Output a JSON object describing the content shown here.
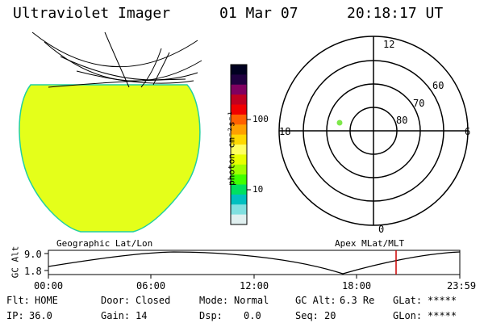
{
  "header": {
    "title": "Ultraviolet Imager",
    "date": "01 Mar 07",
    "time": "20:18:17 UT"
  },
  "colorbar": {
    "unit_label": "photon cm⁻²s⁻¹",
    "ticks": [
      "100",
      "10"
    ],
    "colors": [
      "#000020",
      "#200040",
      "#800060",
      "#c00020",
      "#f00000",
      "#ff6000",
      "#ffa000",
      "#ffd800",
      "#ffff60",
      "#e8ff00",
      "#a0ff00",
      "#40ff00",
      "#00e060",
      "#00c0c0",
      "#80e0e0",
      "#e0f0f0"
    ]
  },
  "earth_panel": {
    "fill_color": "#e4ff1a",
    "edge_color": "#22d0a0"
  },
  "polar_panel": {
    "lat_labels": [
      "60",
      "70",
      "80"
    ],
    "mlt_labels": {
      "top": "12",
      "left": "18",
      "right": "6",
      "bottom": "0"
    },
    "dot_color": "#7ee84a"
  },
  "labels": {
    "geo": "Geographic Lat/Lon",
    "apex": "Apex MLat/MLT"
  },
  "altitude_plot": {
    "axis_label": "GC Alt",
    "y_ticks": [
      "9.0",
      "1.8"
    ],
    "x_ticks": [
      "00:00",
      "06:00",
      "12:00",
      "18:00",
      "23:59"
    ],
    "current_time_color": "#cc0000"
  },
  "status": {
    "flt_label": "Flt:",
    "flt_value": "HOME",
    "ip_label": "IP:",
    "ip_value": "36.0",
    "door_label": "Door:",
    "door_value": "Closed",
    "gain_label": "Gain:",
    "gain_value": "14",
    "mode_label": "Mode:",
    "mode_value": "Normal",
    "dsp_label": "Dsp:",
    "dsp_value": "0.0",
    "gcalt_label": "GC Alt:",
    "gcalt_value": "6.3 Re",
    "seq_label": "Seq:",
    "seq_value": "20",
    "glat_label": "GLat:",
    "glat_value": "*****",
    "glon_label": "GLon:",
    "glon_value": "*****"
  }
}
